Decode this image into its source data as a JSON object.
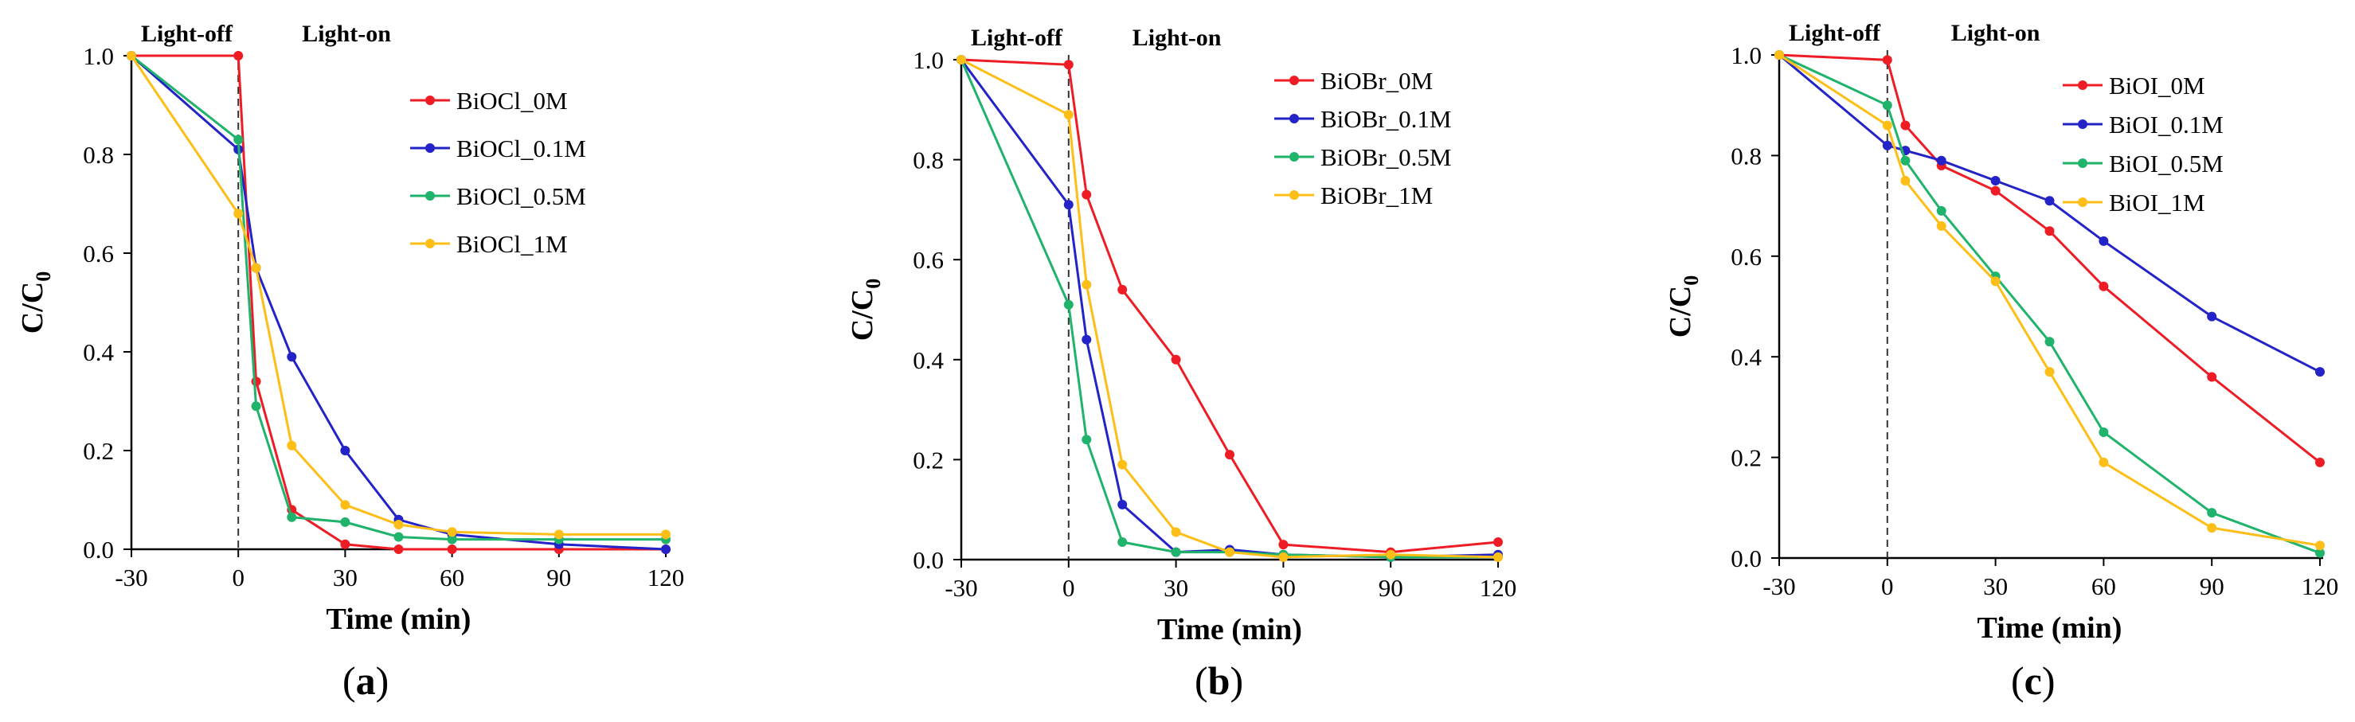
{
  "chart_data": [
    {
      "panel": "(a)",
      "panel_letter": "a",
      "type": "line",
      "title": "",
      "xlabel": "Time (min)",
      "ylabel": "C/C",
      "ylabel_sub": "0",
      "xlim": [
        -30,
        120
      ],
      "ylim": [
        0,
        1.0
      ],
      "xticks": [
        -30,
        0,
        30,
        60,
        90,
        120
      ],
      "xtick_labels": [
        "-30",
        "0",
        "30",
        "60",
        "90",
        "120"
      ],
      "yticks": [
        0,
        0.2,
        0.4,
        0.6,
        0.8,
        1.0
      ],
      "ytick_labels": [
        "0.0",
        "0.2",
        "0.4",
        "0.6",
        "0.8",
        "1.0"
      ],
      "grid": false,
      "legend_position": "top-right",
      "phase_labels": {
        "light_off": "Light-off",
        "light_on": "Light-on"
      },
      "divider_x": 0,
      "series": [
        {
          "name": "BiOCl_0M",
          "color": "#ee1c25",
          "x": [
            -30,
            0,
            5,
            15,
            30,
            45,
            60,
            90,
            120
          ],
          "y": [
            1.0,
            1.0,
            0.34,
            0.08,
            0.01,
            0.0,
            0.0,
            0.0,
            0.0
          ]
        },
        {
          "name": "BiOCl_0.1M",
          "color": "#2323c8",
          "x": [
            -30,
            0,
            5,
            15,
            30,
            45,
            60,
            90,
            120
          ],
          "y": [
            1.0,
            0.81,
            0.57,
            0.39,
            0.2,
            0.06,
            0.03,
            0.01,
            0.0
          ]
        },
        {
          "name": "BiOCl_0.5M",
          "color": "#1fb36b",
          "x": [
            -30,
            0,
            5,
            15,
            30,
            45,
            60,
            90,
            120
          ],
          "y": [
            1.0,
            0.83,
            0.29,
            0.065,
            0.055,
            0.025,
            0.02,
            0.02,
            0.02
          ]
        },
        {
          "name": "BiOCl_1M",
          "color": "#fdbf17",
          "x": [
            -30,
            0,
            5,
            15,
            30,
            45,
            60,
            90,
            120
          ],
          "y": [
            1.0,
            0.68,
            0.57,
            0.21,
            0.09,
            0.05,
            0.035,
            0.03,
            0.03
          ]
        }
      ]
    },
    {
      "panel": "(b)",
      "panel_letter": "b",
      "type": "line",
      "title": "",
      "xlabel": "Time (min)",
      "ylabel": "C/C",
      "ylabel_sub": "0",
      "xlim": [
        -30,
        120
      ],
      "ylim": [
        0,
        1.0
      ],
      "xticks": [
        -30,
        0,
        30,
        60,
        90,
        120
      ],
      "xtick_labels": [
        "-30",
        "0",
        "30",
        "60",
        "90",
        "120"
      ],
      "yticks": [
        0,
        0.2,
        0.4,
        0.6,
        0.8,
        1.0
      ],
      "ytick_labels": [
        "0.0",
        "0.2",
        "0.4",
        "0.6",
        "0.8",
        "1.0"
      ],
      "grid": false,
      "legend_position": "top-right",
      "phase_labels": {
        "light_off": "Light-off",
        "light_on": "Light-on"
      },
      "divider_x": 0,
      "series": [
        {
          "name": "BiOBr_0M",
          "color": "#ee1c25",
          "x": [
            -30,
            0,
            5,
            15,
            30,
            45,
            60,
            90,
            120
          ],
          "y": [
            1.0,
            0.99,
            0.73,
            0.54,
            0.4,
            0.21,
            0.03,
            0.015,
            0.035
          ]
        },
        {
          "name": "BiOBr_0.1M",
          "color": "#2323c8",
          "x": [
            -30,
            0,
            5,
            15,
            30,
            45,
            60,
            90,
            120
          ],
          "y": [
            1.0,
            0.71,
            0.44,
            0.11,
            0.015,
            0.02,
            0.01,
            0.005,
            0.01
          ]
        },
        {
          "name": "BiOBr_0.5M",
          "color": "#1fb36b",
          "x": [
            -30,
            0,
            5,
            15,
            30,
            45,
            60,
            90,
            120
          ],
          "y": [
            1.0,
            0.51,
            0.24,
            0.035,
            0.015,
            0.015,
            0.01,
            0.005,
            0.005
          ]
        },
        {
          "name": "BiOBr_1M",
          "color": "#fdbf17",
          "x": [
            -30,
            0,
            5,
            15,
            30,
            45,
            60,
            90,
            120
          ],
          "y": [
            1.0,
            0.89,
            0.55,
            0.19,
            0.055,
            0.015,
            0.005,
            0.01,
            0.005
          ]
        }
      ]
    },
    {
      "panel": "(c)",
      "panel_letter": "c",
      "type": "line",
      "title": "",
      "xlabel": "Time (min)",
      "ylabel": "C/C",
      "ylabel_sub": "0",
      "xlim": [
        -30,
        120
      ],
      "ylim": [
        0,
        1.0
      ],
      "xticks": [
        -30,
        0,
        30,
        60,
        90,
        120
      ],
      "xtick_labels": [
        "-30",
        "0",
        "30",
        "60",
        "90",
        "120"
      ],
      "yticks": [
        0,
        0.2,
        0.4,
        0.6,
        0.8,
        1.0
      ],
      "ytick_labels": [
        "0.0",
        "0.2",
        "0.4",
        "0.6",
        "0.8",
        "1.0"
      ],
      "grid": false,
      "legend_position": "top-right",
      "phase_labels": {
        "light_off": "Light-off",
        "light_on": "Light-on"
      },
      "divider_x": 0,
      "series": [
        {
          "name": "BiOI_0M",
          "color": "#ee1c25",
          "x": [
            -30,
            0,
            5,
            15,
            30,
            45,
            60,
            90,
            120
          ],
          "y": [
            1.0,
            0.99,
            0.86,
            0.78,
            0.73,
            0.65,
            0.54,
            0.36,
            0.19
          ]
        },
        {
          "name": "BiOI_0.1M",
          "color": "#2323c8",
          "x": [
            -30,
            0,
            5,
            15,
            30,
            45,
            60,
            90,
            120
          ],
          "y": [
            1.0,
            0.82,
            0.81,
            0.79,
            0.75,
            0.71,
            0.63,
            0.48,
            0.37
          ]
        },
        {
          "name": "BiOI_0.5M",
          "color": "#1fb36b",
          "x": [
            -30,
            0,
            5,
            15,
            30,
            45,
            60,
            90,
            120
          ],
          "y": [
            1.0,
            0.9,
            0.79,
            0.69,
            0.56,
            0.43,
            0.25,
            0.09,
            0.01
          ]
        },
        {
          "name": "BiOI_1M",
          "color": "#fdbf17",
          "x": [
            -30,
            0,
            5,
            15,
            30,
            45,
            60,
            90,
            120
          ],
          "y": [
            1.0,
            0.86,
            0.75,
            0.66,
            0.55,
            0.37,
            0.19,
            0.06,
            0.025
          ]
        }
      ]
    }
  ]
}
